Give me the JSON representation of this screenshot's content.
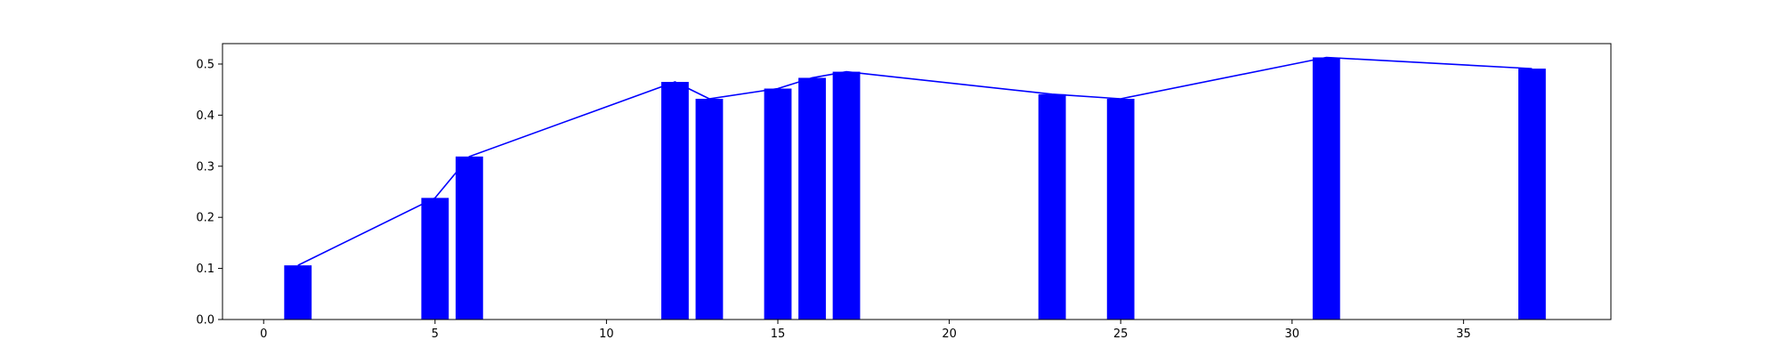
{
  "chart_data": {
    "type": "bar",
    "x": [
      1,
      5,
      6,
      12,
      13,
      15,
      16,
      17,
      23,
      25,
      31,
      37
    ],
    "values": [
      0.106,
      0.238,
      0.319,
      0.465,
      0.432,
      0.452,
      0.473,
      0.485,
      0.441,
      0.432,
      0.513,
      0.491
    ],
    "overlay": "line",
    "xlim": [
      -1.2,
      39.3
    ],
    "ylim": [
      0.0,
      0.54
    ],
    "xticks": [
      0,
      5,
      10,
      15,
      20,
      25,
      30,
      35
    ],
    "yticks": [
      0.0,
      0.1,
      0.2,
      0.3,
      0.4,
      0.5
    ],
    "xtick_labels": [
      "0",
      "5",
      "10",
      "15",
      "20",
      "25",
      "30",
      "35"
    ],
    "ytick_labels": [
      "0.0",
      "0.1",
      "0.2",
      "0.3",
      "0.4",
      "0.5"
    ],
    "bar_width": 0.8,
    "bar_color": "#0000ff",
    "line_color": "#0000ff",
    "grid": false,
    "title": "",
    "xlabel": "",
    "ylabel": ""
  }
}
